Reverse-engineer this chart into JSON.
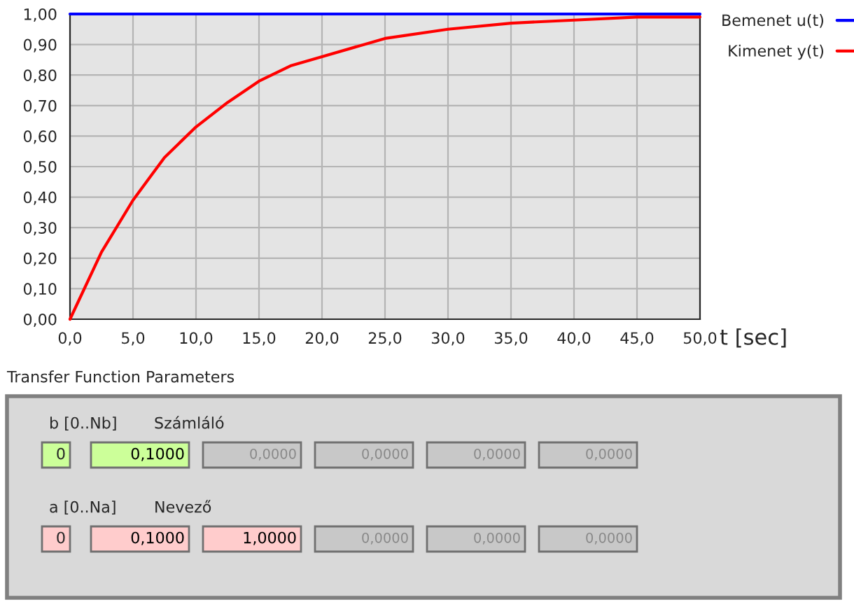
{
  "chart_data": {
    "type": "line",
    "xlabel": "t [sec]",
    "x": [
      0,
      2.5,
      5,
      7.5,
      10,
      12.5,
      15,
      17.5,
      20,
      25,
      30,
      35,
      40,
      45,
      50
    ],
    "series": [
      {
        "name": "Bemenet u(t)",
        "color": "#0000ff",
        "x": [
          0,
          50
        ],
        "values": [
          1,
          1
        ]
      },
      {
        "name": "Kimenet y(t)",
        "color": "#ff0000",
        "values": [
          0,
          0.22,
          0.39,
          0.53,
          0.63,
          0.71,
          0.78,
          0.83,
          0.86,
          0.92,
          0.95,
          0.97,
          0.98,
          0.99,
          0.99
        ]
      }
    ],
    "xlim": [
      0,
      50
    ],
    "xticks": [
      {
        "value": 0,
        "label": "0,0"
      },
      {
        "value": 5,
        "label": "5,0"
      },
      {
        "value": 10,
        "label": "10,0"
      },
      {
        "value": 15,
        "label": "15,0"
      },
      {
        "value": 20,
        "label": "20,0"
      },
      {
        "value": 25,
        "label": "25,0"
      },
      {
        "value": 30,
        "label": "30,0"
      },
      {
        "value": 35,
        "label": "35,0"
      },
      {
        "value": 40,
        "label": "40,0"
      },
      {
        "value": 45,
        "label": "45,0"
      },
      {
        "value": 50,
        "label": "50,0"
      }
    ],
    "ylim": [
      0,
      1
    ],
    "yticks": [
      {
        "value": 0,
        "label": "0,00"
      },
      {
        "value": 0.1,
        "label": "0,10"
      },
      {
        "value": 0.2,
        "label": "0,20"
      },
      {
        "value": 0.3,
        "label": "0,30"
      },
      {
        "value": 0.4,
        "label": "0,40"
      },
      {
        "value": 0.5,
        "label": "0,50"
      },
      {
        "value": 0.6,
        "label": "0,60"
      },
      {
        "value": 0.7,
        "label": "0,70"
      },
      {
        "value": 0.8,
        "label": "0,80"
      },
      {
        "value": 0.9,
        "label": "0,90"
      },
      {
        "value": 1,
        "label": "1,00"
      }
    ],
    "grid": true,
    "legend": "top right",
    "marker": "none",
    "line_style": "solid",
    "annotations": [
      "Transfer Function Parameters",
      "b [0..Nb]",
      "Számláló",
      "0",
      "0,1000",
      "0,0000",
      "0,0000",
      "0,0000",
      "0,0000",
      "a [0..Na]",
      "Nevező",
      "0",
      "0,1000",
      "1,0000",
      "0,0000",
      "0,0000",
      "0,0000"
    ]
  }
}
